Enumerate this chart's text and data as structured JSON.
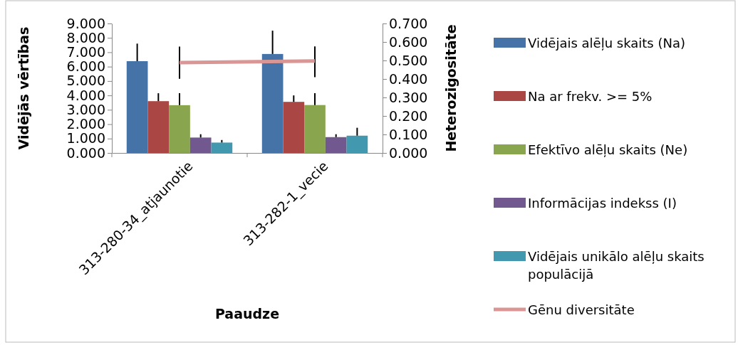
{
  "chart_data": {
    "type": "bar",
    "xlabel": "Paaudze",
    "ylabel": "Vidējās vērtības",
    "y2label": "Heterozigositāte",
    "categories": [
      "313-280-34_atjaunotie",
      "313-282-1_vecie"
    ],
    "series": [
      {
        "name": "Vidējais alēļu skaits (Na)",
        "color": "#4572a7",
        "values": [
          6.38,
          6.88
        ],
        "errors": [
          [
            6.38,
            7.6
          ],
          [
            6.88,
            8.5
          ]
        ]
      },
      {
        "name": "Na ar frekv. >= 5%",
        "color": "#aa4643",
        "values": [
          3.6,
          3.55
        ],
        "errors": [
          [
            3.6,
            4.15
          ],
          [
            3.55,
            4.0
          ]
        ]
      },
      {
        "name": "Efektīvo alēļu skaits (Ne)",
        "color": "#89a54e",
        "values": [
          3.32,
          3.33
        ],
        "errors": [
          [
            3.32,
            4.15
          ],
          [
            3.33,
            4.15
          ]
        ]
      },
      {
        "name": "Informācijas indekss (I)",
        "color": "#71588f",
        "values": [
          1.07,
          1.1
        ],
        "errors": [
          [
            1.07,
            1.3
          ],
          [
            1.1,
            1.3
          ]
        ]
      },
      {
        "name": "Vidējais unikālo alēļu skaits populācijā",
        "color": "#4198af",
        "values": [
          0.72,
          1.2
        ],
        "errors": [
          [
            0.72,
            0.9
          ],
          [
            1.2,
            1.75
          ]
        ]
      },
      {
        "name": "Gēnu diversitāte",
        "type": "line",
        "axis": "y2",
        "color": "#d99694",
        "values": [
          0.488,
          0.497
        ],
        "errors": [
          [
            0.401,
            0.575
          ],
          [
            0.41,
            0.576
          ]
        ]
      }
    ],
    "ylim": [
      0,
      9
    ],
    "yticks": [
      {
        "value": 0,
        "label": "0.000"
      },
      {
        "value": 1,
        "label": "1.000"
      },
      {
        "value": 2,
        "label": "2.000"
      },
      {
        "value": 3,
        "label": "3.000"
      },
      {
        "value": 4,
        "label": "4.000"
      },
      {
        "value": 5,
        "label": "5.000"
      },
      {
        "value": 6,
        "label": "6.000"
      },
      {
        "value": 7,
        "label": "7.000"
      },
      {
        "value": 8,
        "label": "8.000"
      },
      {
        "value": 9,
        "label": "9.000"
      }
    ],
    "y2lim": [
      0,
      0.7
    ],
    "y2ticks": [
      {
        "value": 0,
        "label": "0.000"
      },
      {
        "value": 0.1,
        "label": "0.100"
      },
      {
        "value": 0.2,
        "label": "0.200"
      },
      {
        "value": 0.3,
        "label": "0.300"
      },
      {
        "value": 0.4,
        "label": "0.400"
      },
      {
        "value": 0.5,
        "label": "0.500"
      },
      {
        "value": 0.6,
        "label": "0.600"
      },
      {
        "value": 0.7,
        "label": "0.700"
      }
    ],
    "legend": "right",
    "grid": false
  }
}
